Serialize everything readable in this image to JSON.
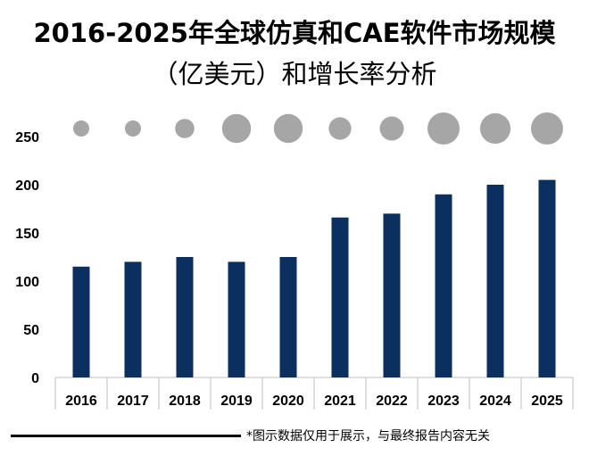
{
  "title_line1": "2016-2025年全球仿真和CAE软件市场规模",
  "title_line2": "（亿美元）和增长率分析",
  "footer_note": "*图示数据仅用于展示，与最终报告内容无关",
  "colors": {
    "bar": "#0b2f5e",
    "bubble": "#a6a6a6",
    "axis": "#bfbfbf"
  },
  "chart_data": {
    "type": "bar",
    "categories": [
      "2016",
      "2017",
      "2018",
      "2019",
      "2020",
      "2021",
      "2022",
      "2023",
      "2024",
      "2025"
    ],
    "values": [
      115,
      120,
      125,
      120,
      125,
      166,
      170,
      190,
      200,
      205
    ],
    "bubble_size": [
      1,
      1,
      1.2,
      1.8,
      1.8,
      1.4,
      1.5,
      2.0,
      1.9,
      2.0
    ],
    "ylim": [
      0,
      250
    ],
    "yticks": [
      0,
      50,
      100,
      150,
      200,
      250
    ],
    "grid": false
  }
}
